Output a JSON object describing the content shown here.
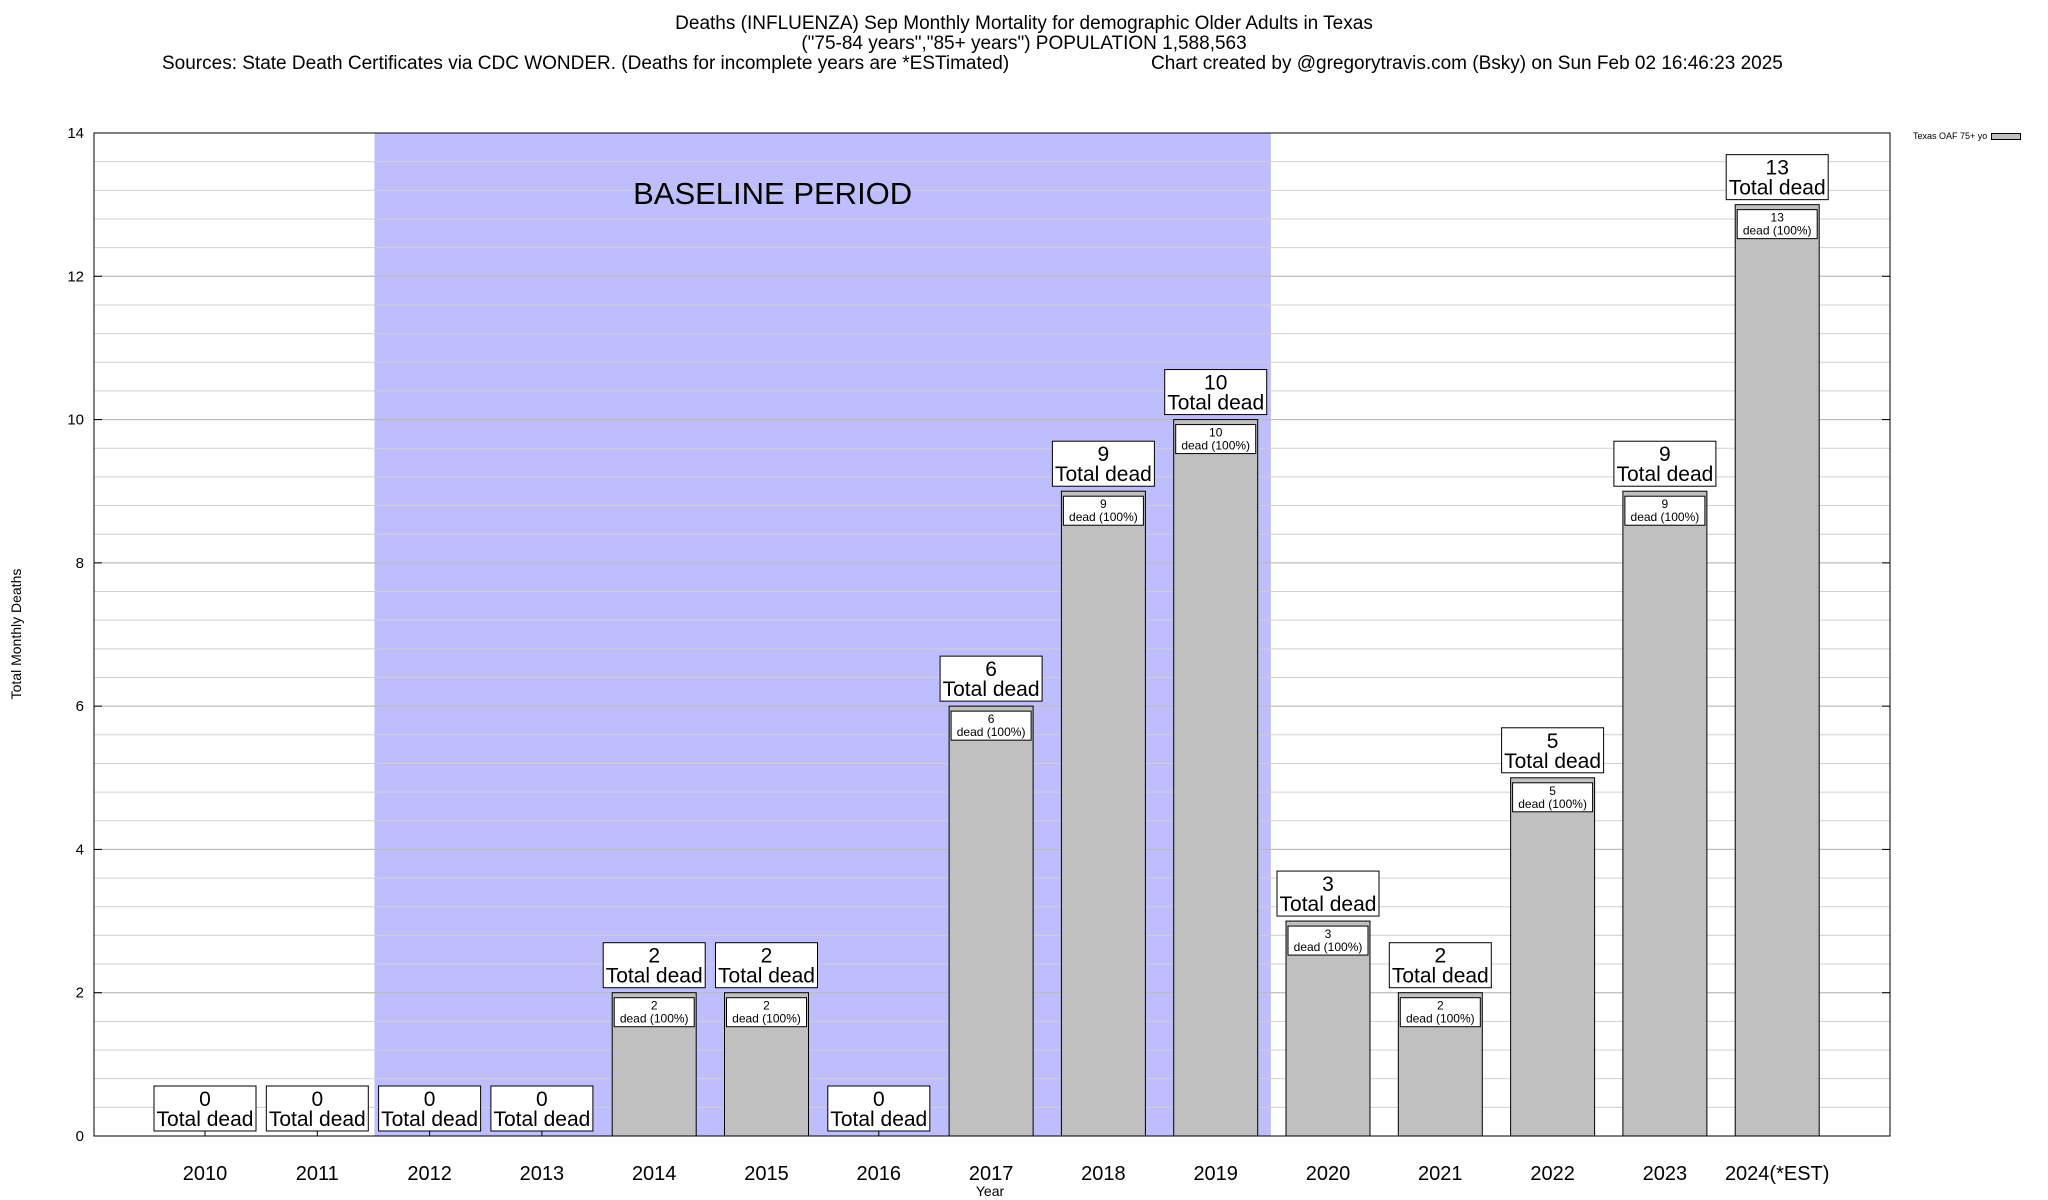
{
  "chart_data": {
    "type": "bar",
    "title": "Deaths (INFLUENZA) Sep Monthly Mortality for demographic Older Adults in Texas",
    "subtitle": "(\"75-84 years\",\"85+ years\") POPULATION 1,588,563",
    "source": "Sources: State Death Certificates via CDC WONDER. (Deaths for incomplete years are *ESTimated)",
    "credit": "Chart created by @gregorytravis.com (Bsky) on Sun Feb 02 16:46:23 2025",
    "xlabel": "Year",
    "ylabel": "Total Monthly Deaths",
    "ylim": [
      0,
      14
    ],
    "yticks": [
      0,
      2,
      4,
      6,
      8,
      10,
      12,
      14
    ],
    "grid": true,
    "legend_position": "top-right",
    "categories": [
      "2010",
      "2011",
      "2012",
      "2013",
      "2014",
      "2015",
      "2016",
      "2017",
      "2018",
      "2019",
      "2020",
      "2021",
      "2022",
      "2023",
      "2024(*EST)"
    ],
    "series": [
      {
        "name": "Texas OAF 75+ yo",
        "values": [
          0,
          0,
          0,
          0,
          2,
          2,
          0,
          6,
          9,
          10,
          3,
          2,
          5,
          9,
          13
        ],
        "color": "#c0c0c0"
      }
    ],
    "total_label": "Total dead",
    "inner_label_suffix": "dead (100%)",
    "annotation": {
      "text": "BASELINE PERIOD",
      "x_start": "2012",
      "x_end": "2019",
      "color": "#bebefe"
    }
  }
}
